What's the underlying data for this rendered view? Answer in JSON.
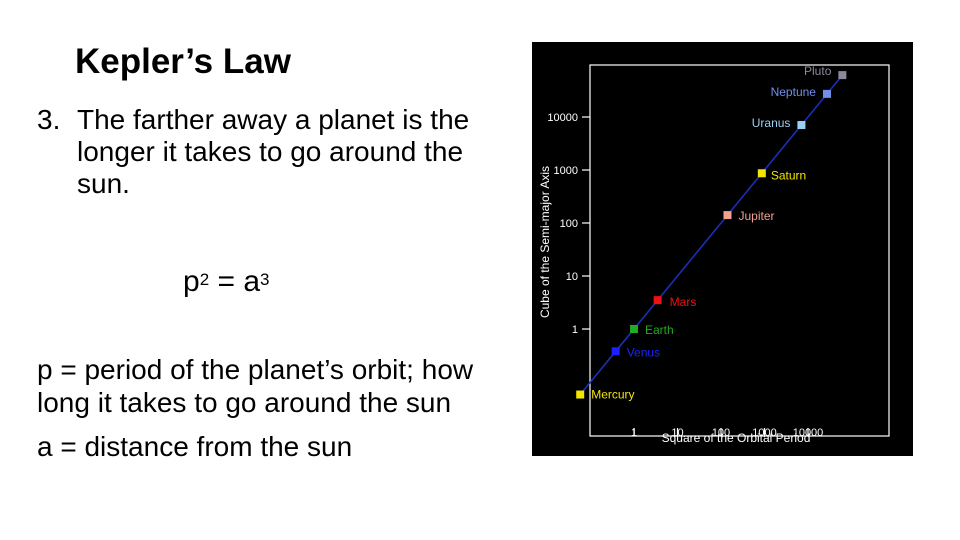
{
  "slide": {
    "title": "Kepler’s Law",
    "point_number": "3.",
    "point_text": "The farther away a planet is the longer it takes to go around the sun.",
    "formula": {
      "p": "p",
      "p_exp": "2",
      "eq": " = ",
      "a": "a",
      "a_exp": "3"
    },
    "definitions": [
      "p = period of the planet’s orbit; how long it takes to go around the sun",
      "a = distance from the sun"
    ]
  },
  "chart_data": {
    "type": "scatter",
    "background": "#000000",
    "xlabel": "Square of the Orbital Period",
    "ylabel": "Cube of the Semi-major Axis",
    "xscale": "log",
    "yscale": "log",
    "x_ticks": [
      "1",
      "10",
      "100",
      "1000",
      "10000"
    ],
    "y_ticks": [
      "1",
      "10",
      "100",
      "1000",
      "10000"
    ],
    "line_color": "#1a2fb8",
    "points": [
      {
        "name": "Mercury",
        "x": 0.058,
        "y": 0.058,
        "color": "#f2e600"
      },
      {
        "name": "Venus",
        "x": 0.38,
        "y": 0.38,
        "color": "#1a22ff"
      },
      {
        "name": "Earth",
        "x": 1,
        "y": 1,
        "color": "#22aa22"
      },
      {
        "name": "Mars",
        "x": 3.5,
        "y": 3.5,
        "color": "#ee1111"
      },
      {
        "name": "Jupiter",
        "x": 141,
        "y": 141,
        "color": "#f0a090"
      },
      {
        "name": "Saturn",
        "x": 868,
        "y": 868,
        "color": "#f2e600"
      },
      {
        "name": "Uranus",
        "x": 7060,
        "y": 7060,
        "color": "#9ad0f0"
      },
      {
        "name": "Neptune",
        "x": 27300,
        "y": 27300,
        "color": "#6f8fe8"
      },
      {
        "name": "Pluto",
        "x": 61700,
        "y": 61700,
        "color": "#8a8a9a"
      }
    ]
  }
}
